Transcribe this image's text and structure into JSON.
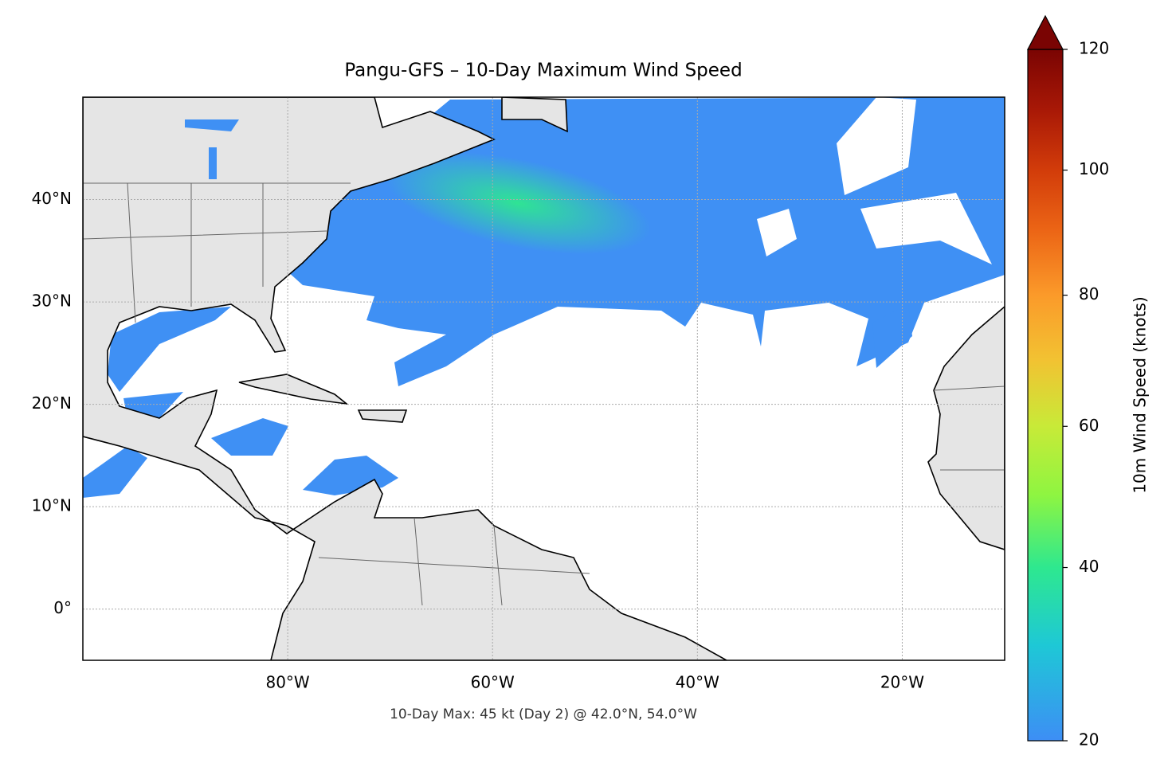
{
  "title": "Pangu-GFS – 10-Day Maximum Wind Speed",
  "annotation": "10-Day Max: 45 kt (Day 2) @ 42.0°N, 54.0°W",
  "map": {
    "xlim": [
      -100,
      -10
    ],
    "ylim": [
      -5,
      50
    ],
    "xticks": [
      {
        "value": -80,
        "label": "80°W"
      },
      {
        "value": -60,
        "label": "60°W"
      },
      {
        "value": -40,
        "label": "40°W"
      },
      {
        "value": -20,
        "label": "20°W"
      }
    ],
    "yticks": [
      {
        "value": 0,
        "label": "0°"
      },
      {
        "value": 10,
        "label": "10°N"
      },
      {
        "value": 20,
        "label": "20°N"
      },
      {
        "value": 30,
        "label": "30°N"
      },
      {
        "value": 40,
        "label": "40°N"
      }
    ],
    "grid": true
  },
  "colorbar": {
    "label": "10m Wind Speed (knots)",
    "lim": [
      20,
      120
    ],
    "ticks": [
      20,
      40,
      60,
      80,
      100,
      120
    ],
    "colormap": [
      "#3d8ef5",
      "#1ec8d6",
      "#2ee88f",
      "#8ef541",
      "#c8ea38",
      "#f2c232",
      "#fb9a2a",
      "#ec6616",
      "#d23c0a",
      "#a81806",
      "#7a0403"
    ]
  }
}
